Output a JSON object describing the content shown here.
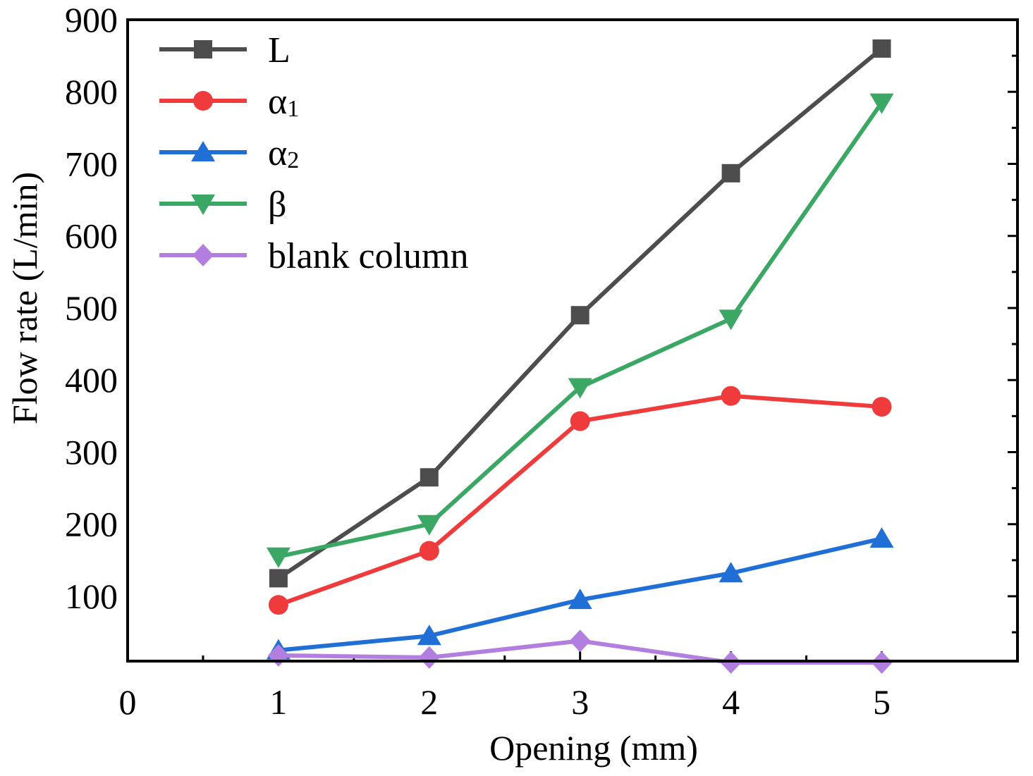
{
  "chart_data": {
    "type": "line",
    "title": "",
    "xlabel": "Opening (mm)",
    "ylabel": "Flow rate (L/min)",
    "xlim": [
      0,
      5.9
    ],
    "ylim": [
      10,
      900
    ],
    "xticks": [
      0,
      1,
      2,
      3,
      4,
      5
    ],
    "yticks": [
      100,
      200,
      300,
      400,
      500,
      600,
      700,
      800,
      900
    ],
    "grid": false,
    "legend_position": "top-left",
    "series": [
      {
        "name": "L",
        "label_main": "L",
        "label_sub": "",
        "color": "#4d4d4d",
        "marker": "square",
        "x": [
          1,
          2,
          3,
          4,
          5
        ],
        "values": [
          125,
          265,
          490,
          687,
          860
        ]
      },
      {
        "name": "α1",
        "label_main": "α",
        "label_sub": "1",
        "color": "#ef3b3b",
        "marker": "circle",
        "x": [
          1,
          2,
          3,
          4,
          5
        ],
        "values": [
          88,
          163,
          343,
          378,
          363
        ]
      },
      {
        "name": "α2",
        "label_main": "α",
        "label_sub": "2",
        "color": "#1f6fd6",
        "marker": "triangle-up",
        "x": [
          1,
          2,
          3,
          4,
          5
        ],
        "values": [
          25,
          45,
          95,
          132,
          180
        ]
      },
      {
        "name": "β",
        "label_main": "β",
        "label_sub": "",
        "color": "#3aa864",
        "marker": "triangle-down",
        "x": [
          1,
          2,
          3,
          4,
          5
        ],
        "values": [
          155,
          200,
          390,
          485,
          785
        ]
      },
      {
        "name": "blank column",
        "label_main": "blank column",
        "label_sub": "",
        "color": "#b27fe0",
        "marker": "diamond",
        "x": [
          1,
          2,
          3,
          4,
          5
        ],
        "values": [
          18,
          15,
          38,
          8,
          8
        ]
      }
    ]
  }
}
